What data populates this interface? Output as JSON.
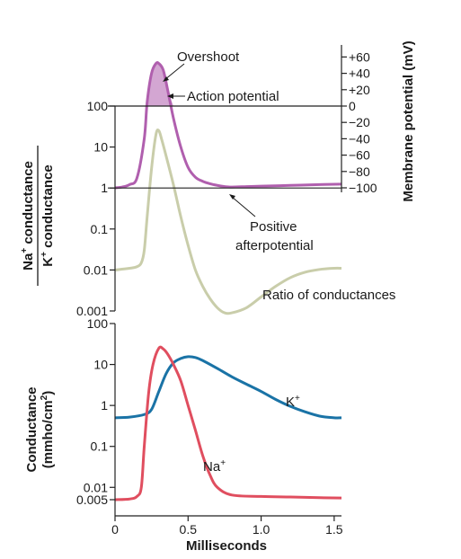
{
  "chart_data": [
    {
      "type": "line",
      "panel": "top",
      "ylabel_numerator": "Na",
      "ylabel_numerator_sup": "+",
      "ylabel_numerator_rest": " conductance",
      "ylabel_denominator": "K",
      "ylabel_denominator_sup": "+",
      "ylabel_denominator_rest": " conductance",
      "yscale": "log",
      "ylim": [
        0.001,
        100
      ],
      "left_ticks": [
        "100",
        "10",
        "1",
        "0.1",
        "0.01",
        "0.001"
      ],
      "left_tick_values": [
        100,
        10,
        1,
        0.1,
        0.01,
        0.001
      ],
      "right_axis": {
        "label": "Membrane potential (mV)",
        "ticks": [
          "+60",
          "+40",
          "+20",
          "0",
          "−20",
          "−40",
          "−60",
          "−80",
          "−100"
        ],
        "tick_values": [
          60,
          40,
          20,
          0,
          -20,
          -40,
          -60,
          -80,
          -100
        ],
        "ylim": [
          -100,
          60
        ]
      },
      "series": [
        {
          "name": "Ratio of conductances",
          "axis": "left",
          "color": "#c9cdaa",
          "x": [
            0,
            0.1,
            0.15,
            0.18,
            0.2,
            0.22,
            0.25,
            0.28,
            0.3,
            0.32,
            0.35,
            0.4,
            0.45,
            0.5,
            0.55,
            0.6,
            0.65,
            0.7,
            0.75,
            0.8,
            0.9,
            1.0,
            1.1,
            1.2,
            1.3,
            1.4,
            1.5,
            1.55
          ],
          "y": [
            0.01,
            0.011,
            0.012,
            0.015,
            0.03,
            0.2,
            3,
            20,
            25,
            15,
            6,
            1.2,
            0.2,
            0.04,
            0.01,
            0.004,
            0.002,
            0.0012,
            0.0009,
            0.0009,
            0.0012,
            0.0022,
            0.004,
            0.0065,
            0.0088,
            0.0103,
            0.011,
            0.011
          ]
        },
        {
          "name": "Action potential",
          "axis": "right",
          "color": "#b05fae",
          "fill": "#d3a6d2",
          "x": [
            0,
            0.05,
            0.1,
            0.15,
            0.2,
            0.22,
            0.25,
            0.28,
            0.3,
            0.33,
            0.36,
            0.4,
            0.45,
            0.5,
            0.55,
            0.6,
            0.65,
            0.7,
            0.75,
            0.8,
            0.9,
            1.0,
            1.2,
            1.4,
            1.55
          ],
          "y": [
            -100,
            -99,
            -96,
            -88,
            -40,
            5,
            40,
            52,
            52,
            44,
            20,
            -15,
            -50,
            -75,
            -87,
            -92,
            -95,
            -97,
            -98.5,
            -99,
            -98.5,
            -98,
            -97,
            -96,
            -95.5
          ]
        }
      ],
      "annotations": [
        {
          "text": "Overshoot"
        },
        {
          "text": "Action potential"
        },
        {
          "line1": "Positive",
          "line2": "afterpotential"
        },
        {
          "text": "Ratio of conductances"
        }
      ]
    },
    {
      "type": "line",
      "panel": "bottom",
      "ylabel_line1": "Conductance",
      "ylabel_line2_pre": "(mmho/cm",
      "ylabel_line2_sup": "2",
      "ylabel_line2_post": ")",
      "yscale": "log",
      "ylim": [
        0.005,
        100
      ],
      "left_ticks": [
        "100",
        "10",
        "1",
        "0.1",
        "0.01",
        "0.005"
      ],
      "left_tick_values": [
        100,
        10,
        1,
        0.1,
        0.01,
        0.005
      ],
      "xlabel": "Milliseconds",
      "x_ticks": [
        "0",
        "0.5",
        "1.0",
        "1.5"
      ],
      "x_tick_values": [
        0,
        0.5,
        1.0,
        1.5
      ],
      "xlim": [
        0,
        1.55
      ],
      "series": [
        {
          "name": "K",
          "sup": "+",
          "color": "#1a73a6",
          "x": [
            0,
            0.1,
            0.2,
            0.25,
            0.3,
            0.35,
            0.4,
            0.45,
            0.5,
            0.55,
            0.6,
            0.7,
            0.8,
            0.9,
            1.0,
            1.1,
            1.2,
            1.3,
            1.4,
            1.5,
            1.55
          ],
          "y": [
            0.5,
            0.52,
            0.6,
            0.8,
            2.2,
            6,
            11,
            14,
            15.5,
            14.8,
            12.5,
            8,
            5,
            3.3,
            2.2,
            1.4,
            0.95,
            0.7,
            0.55,
            0.5,
            0.5
          ]
        },
        {
          "name": "Na",
          "sup": "+",
          "color": "#e04e5f",
          "x": [
            0,
            0.1,
            0.15,
            0.18,
            0.2,
            0.23,
            0.26,
            0.3,
            0.33,
            0.36,
            0.4,
            0.45,
            0.5,
            0.55,
            0.6,
            0.65,
            0.7,
            0.8,
            1.0,
            1.2,
            1.4,
            1.55
          ],
          "y": [
            0.005,
            0.0052,
            0.006,
            0.01,
            0.1,
            2,
            10,
            25,
            24,
            18,
            10,
            4,
            1,
            0.25,
            0.06,
            0.02,
            0.01,
            0.0065,
            0.006,
            0.0058,
            0.0056,
            0.0055
          ]
        }
      ]
    }
  ]
}
